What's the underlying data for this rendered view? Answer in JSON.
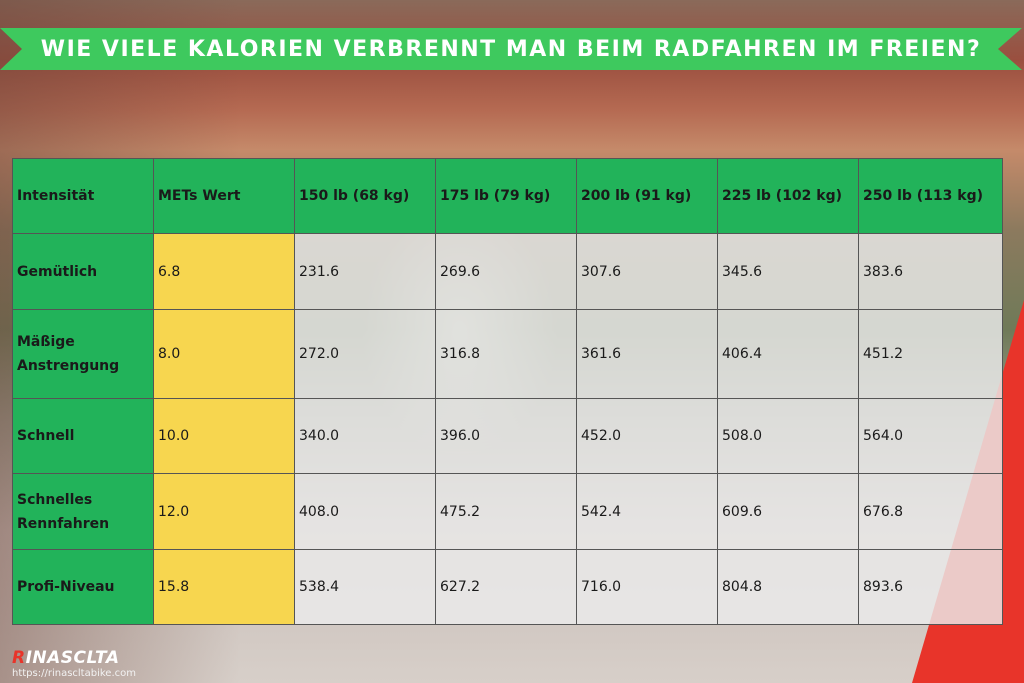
{
  "title": "WIE VIELE KALORIEN VERBRENNT MAN BEIM RADFAHREN IM FREIEN?",
  "colors": {
    "banner": "#3ec95e",
    "header_green": "#22b35a",
    "met_yellow": "#f7d64f",
    "accent_red": "#e8342a"
  },
  "table": {
    "headers": [
      "Intensität",
      "METs Wert",
      "150 lb (68 kg)",
      "175 lb (79 kg)",
      "200 lb (91 kg)",
      "225 lb (102 kg)",
      "250 lb (113 kg)"
    ],
    "rows": [
      {
        "label": "Gemütlich",
        "met": "6.8",
        "values": [
          "231.6",
          "269.6",
          "307.6",
          "345.6",
          "383.6"
        ]
      },
      {
        "label": "Mäßige Anstrengung",
        "met": "8.0",
        "values": [
          "272.0",
          "316.8",
          "361.6",
          "406.4",
          "451.2"
        ]
      },
      {
        "label": "Schnell",
        "met": "10.0",
        "values": [
          "340.0",
          "396.0",
          "452.0",
          "508.0",
          "564.0"
        ]
      },
      {
        "label": "Schnelles Rennfahren",
        "met": "12.0",
        "values": [
          "408.0",
          "475.2",
          "542.4",
          "609.6",
          "676.8"
        ]
      },
      {
        "label": "Profi-Niveau",
        "met": "15.8",
        "values": [
          "538.4",
          "627.2",
          "716.0",
          "804.8",
          "893.6"
        ]
      }
    ]
  },
  "footer": {
    "logo_first": "R",
    "logo_rest": "INASCLTA",
    "url": "https://rinascltabike.com"
  }
}
